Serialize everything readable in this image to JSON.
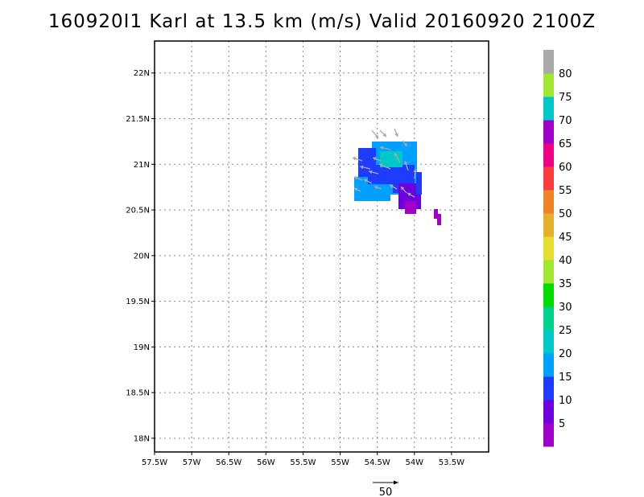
{
  "title": "160920I1 Karl at 13.5 km (m/s) Valid 20160920 2100Z",
  "map": {
    "lon_range": [
      -57.5,
      -53.0
    ],
    "lat_range": [
      17.85,
      22.35
    ],
    "lat_ticks": [
      {
        "value": 22.0,
        "label": "22N"
      },
      {
        "value": 21.5,
        "label": "21.5N"
      },
      {
        "value": 21.0,
        "label": "21N"
      },
      {
        "value": 20.5,
        "label": "20.5N"
      },
      {
        "value": 20.0,
        "label": "20N"
      },
      {
        "value": 19.5,
        "label": "19.5N"
      },
      {
        "value": 19.0,
        "label": "19N"
      },
      {
        "value": 18.5,
        "label": "18.5N"
      },
      {
        "value": 18.0,
        "label": "18N"
      }
    ],
    "lon_ticks": [
      {
        "value": -57.5,
        "label": "57.5W"
      },
      {
        "value": -57.0,
        "label": "57W"
      },
      {
        "value": -56.5,
        "label": "56.5W"
      },
      {
        "value": -56.0,
        "label": "56W"
      },
      {
        "value": -55.5,
        "label": "55.5W"
      },
      {
        "value": -55.0,
        "label": "55W"
      },
      {
        "value": -54.5,
        "label": "54.5W"
      },
      {
        "value": -54.0,
        "label": "54W"
      },
      {
        "value": -53.5,
        "label": "53.5W"
      }
    ],
    "grid": true
  },
  "colorbar": {
    "colors": [
      "#a000c8",
      "#6e00dc",
      "#1e3cff",
      "#00a0ff",
      "#00c8c8",
      "#00d28c",
      "#00dc00",
      "#a0e632",
      "#e6dc32",
      "#e6af2d",
      "#f08228",
      "#fa3c3c",
      "#f00082",
      "#a000c8",
      "#00c8c8",
      "#a0e632",
      "#aaaaaa"
    ],
    "labels": [
      "5",
      "10",
      "15",
      "20",
      "25",
      "30",
      "35",
      "40",
      "45",
      "50",
      "55",
      "60",
      "65",
      "70",
      "75",
      "80"
    ]
  },
  "reference_vector": {
    "label": "50"
  }
}
